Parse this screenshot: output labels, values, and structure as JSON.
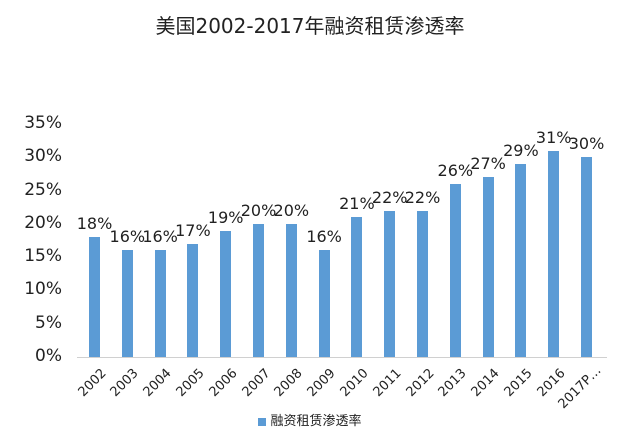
{
  "chart_data": {
    "type": "bar",
    "title": "美国2002-2017年融资租赁渗透率",
    "xlabel": "",
    "ylabel": "",
    "categories": [
      "2002",
      "2003",
      "2004",
      "2005",
      "2006",
      "2007",
      "2008",
      "2009",
      "2010",
      "2011",
      "2012",
      "2013",
      "2014",
      "2015",
      "2016",
      "2017P…"
    ],
    "series": [
      {
        "name": "融资租赁渗透率",
        "color": "#5b9bd5",
        "values": [
          18,
          16,
          16,
          17,
          19,
          20,
          20,
          16,
          21,
          22,
          22,
          26,
          27,
          29,
          31,
          30
        ],
        "labels": [
          "18%",
          "16%",
          "16%",
          "17%",
          "19%",
          "20%",
          "20%",
          "16%",
          "21%",
          "22%",
          "22%",
          "26%",
          "27%",
          "29%",
          "31%",
          "30%"
        ]
      }
    ],
    "ylim": [
      0,
      35
    ],
    "yticks": [
      "0%",
      "5%",
      "10%",
      "15%",
      "20%",
      "25%",
      "30%",
      "35%"
    ],
    "grid": false,
    "legend_position": "bottom"
  }
}
